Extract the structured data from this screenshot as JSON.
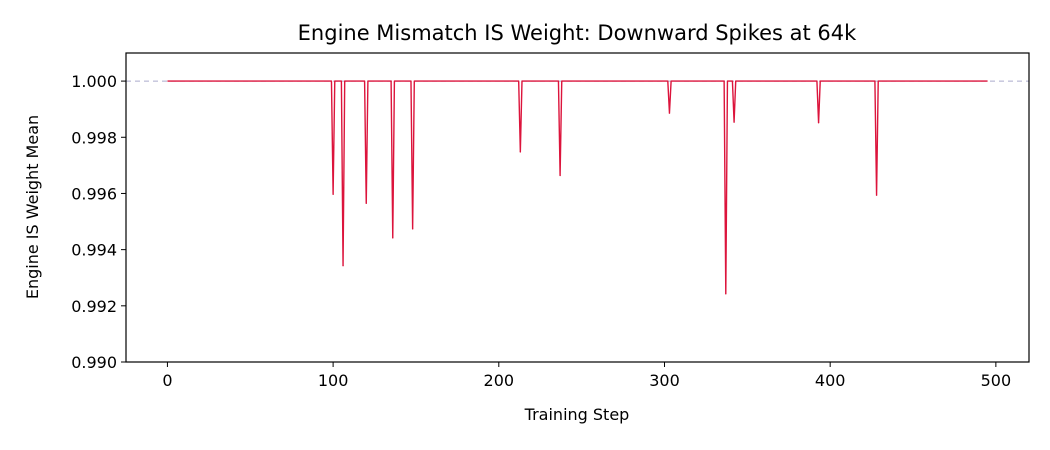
{
  "chart_data": {
    "type": "line",
    "title": "Engine Mismatch IS Weight: Downward Spikes at 64k",
    "xlabel": "Training Step",
    "ylabel": "Engine IS Weight Mean",
    "xlim": [
      -25,
      520
    ],
    "ylim": [
      0.99,
      1.001
    ],
    "xticks": [
      0,
      100,
      200,
      300,
      400,
      500
    ],
    "xtick_labels": [
      "0",
      "100",
      "200",
      "300",
      "400",
      "500"
    ],
    "yticks": [
      0.99,
      0.992,
      0.994,
      0.996,
      0.998,
      1.0
    ],
    "ytick_labels": [
      "0.990",
      "0.992",
      "0.994",
      "0.996",
      "0.998",
      "1.000"
    ],
    "reference_line": {
      "y": 1.0,
      "style": "dashed",
      "color": "#aaaacc"
    },
    "grid": false,
    "series": [
      {
        "color": "#dc143c",
        "x_start": 0,
        "x_end": 495,
        "baseline": 1.0,
        "spikes": [
          {
            "x": 100,
            "y": 0.99597
          },
          {
            "x": 106,
            "y": 0.99343
          },
          {
            "x": 120,
            "y": 0.99565
          },
          {
            "x": 136,
            "y": 0.99442
          },
          {
            "x": 148,
            "y": 0.99474
          },
          {
            "x": 213,
            "y": 0.99748
          },
          {
            "x": 237,
            "y": 0.99664
          },
          {
            "x": 303,
            "y": 0.99886
          },
          {
            "x": 337,
            "y": 0.99243
          },
          {
            "x": 342,
            "y": 0.99854
          },
          {
            "x": 393,
            "y": 0.99852
          },
          {
            "x": 428,
            "y": 0.99594
          }
        ]
      }
    ]
  }
}
